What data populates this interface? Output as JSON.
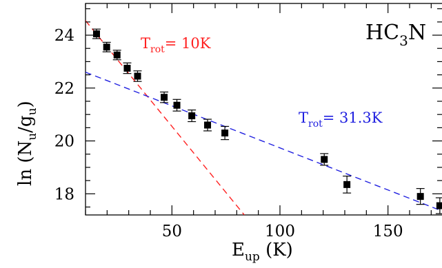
{
  "chart_data": {
    "type": "scatter",
    "molecule_label": {
      "base": "HC",
      "sub1": "3",
      "tail": "N"
    },
    "xlabel": {
      "base": "E",
      "sub": "up",
      "unit": " (K)"
    },
    "ylabel": {
      "prefix": "ln (N",
      "sub1": "u",
      "mid": "/g",
      "sub2": "u",
      "suffix": ")"
    },
    "xlim": [
      10,
      175
    ],
    "ylim": [
      17.2,
      25.2
    ],
    "xticks": [
      {
        "value": 50,
        "label": "50"
      },
      {
        "value": 100,
        "label": "100"
      },
      {
        "value": 150,
        "label": "150"
      }
    ],
    "yticks": [
      {
        "value": 18,
        "label": "18"
      },
      {
        "value": 20,
        "label": "20"
      },
      {
        "value": 22,
        "label": "22"
      },
      {
        "value": 24,
        "label": "24"
      }
    ],
    "x_minor_step": 10,
    "y_minor_step": 0.5,
    "points": [
      {
        "x": 15.1,
        "y": 24.05,
        "err": 0.18
      },
      {
        "x": 19.8,
        "y": 23.55,
        "err": 0.18
      },
      {
        "x": 24.6,
        "y": 23.25,
        "err": 0.18
      },
      {
        "x": 29.3,
        "y": 22.75,
        "err": 0.2
      },
      {
        "x": 34.1,
        "y": 22.45,
        "err": 0.2
      },
      {
        "x": 46.4,
        "y": 21.65,
        "err": 0.2
      },
      {
        "x": 52.3,
        "y": 21.35,
        "err": 0.22
      },
      {
        "x": 59.2,
        "y": 20.95,
        "err": 0.22
      },
      {
        "x": 66.5,
        "y": 20.6,
        "err": 0.22
      },
      {
        "x": 74.5,
        "y": 20.3,
        "err": 0.25
      },
      {
        "x": 120.5,
        "y": 19.3,
        "err": 0.22
      },
      {
        "x": 131.0,
        "y": 18.35,
        "err": 0.32
      },
      {
        "x": 165.0,
        "y": 17.9,
        "err": 0.3
      },
      {
        "x": 174.0,
        "y": 17.55,
        "err": 0.3
      }
    ],
    "fits": [
      {
        "color": "#ff2020",
        "x0": 10,
        "y0": 24.55,
        "x1": 83.5,
        "y1": 17.2,
        "label": {
          "base": "T",
          "sub": "rot",
          "value": "=  10K"
        }
      },
      {
        "color": "#2020e0",
        "x0": 10,
        "y0": 22.6,
        "x1": 175,
        "y1": 17.35,
        "label": {
          "base": "T",
          "sub": "rot",
          "value": "=  31.3K"
        }
      }
    ]
  }
}
